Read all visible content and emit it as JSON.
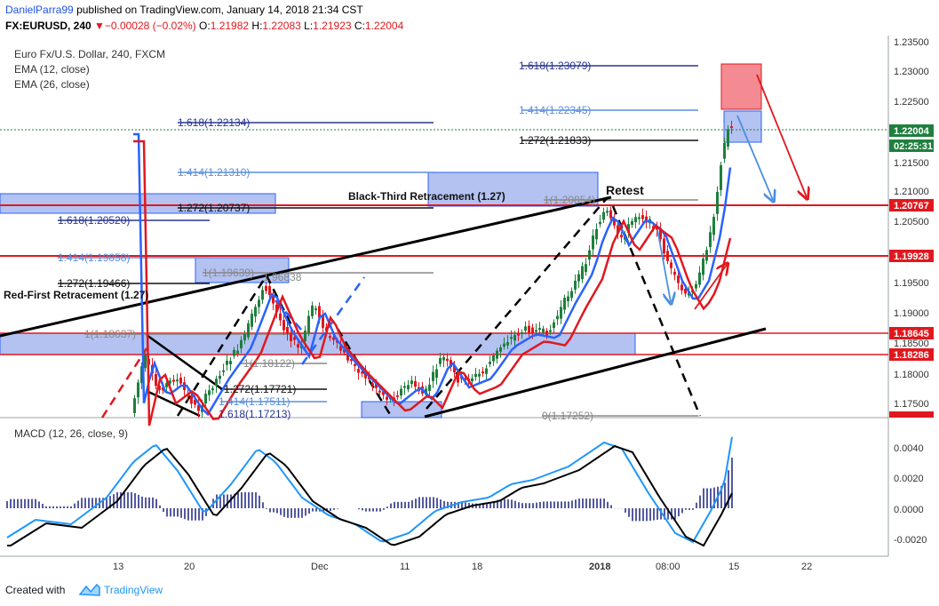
{
  "header": {
    "author": "DanielParra99",
    "published_text": "published on TradingView.com, January 14, 2018 21:34 CST",
    "symbol": "FX:EURUSD, 240",
    "change": "▼−0.00028 (−0.02%)",
    "ohlc": {
      "o_label": "O:",
      "o_value": "1.21982",
      "h_label": "H:",
      "h_value": "1.22083",
      "l_label": "L:",
      "l_value": "1.21923",
      "c_label": "C:",
      "c_value": "1.22004",
      "price": "1.22004"
    }
  },
  "legend": {
    "title": "Euro Fx/U.S. Dollar, 240, FXCM",
    "ema12": "EMA (12, close)",
    "ema26": "EMA (26, close)",
    "macd": "MACD (12, 26, close, 9)"
  },
  "price_axis": {
    "ticks": [
      "1.23500",
      "1.23000",
      "1.22500",
      "1.21500",
      "1.21000",
      "1.20500",
      "1.19500",
      "1.19000",
      "1.18500",
      "1.18000",
      "1.17500"
    ],
    "badges": [
      {
        "label": "1.22004",
        "color": "#1f7f3d"
      },
      {
        "label": "02:25:31",
        "color": "#1f7f3d"
      },
      {
        "label": "1.20767",
        "color": "#e0181e"
      },
      {
        "label": "1.19928",
        "color": "#e0181e"
      },
      {
        "label": "1.18645",
        "color": "#e0181e"
      },
      {
        "label": "1.18286",
        "color": "#e0181e"
      },
      {
        "label": "1.17284",
        "color": "#e0181e"
      }
    ]
  },
  "macd_axis": {
    "ticks": [
      "0.0040",
      "0.0020",
      "0.0000",
      "-0.0020"
    ]
  },
  "time_axis": {
    "labels": [
      "13",
      "20",
      "Dec",
      "11",
      "18",
      "2018",
      "08:00",
      "15",
      "22"
    ]
  },
  "annotations": {
    "fibs": [
      "1.618(1.23079)",
      "1.414(1.22345)",
      "1.272(1.21833)",
      "1.618(1.22134)",
      "1.414(1.21310)",
      "1.272(1.20737)",
      "1.618(1.20520)",
      "1.414(1.19858)",
      "1.272(1.19466)",
      "1(1.20854)",
      "1(1.19639)",
      "1.96838",
      "1(1.18637)",
      "1(1.18122)",
      "1.272(1.17721)",
      "1.414(1.17511)",
      "1.618(1.17213)",
      "0(1.17252)"
    ],
    "black_third": "Black-Third Retracement (1.27)",
    "red_first": "Red-First Retracement (1.27)",
    "retest": "Retest"
  },
  "footer": {
    "created_with": "Created with",
    "brand": "TradingView"
  },
  "colors": {
    "bull": "#1f7f3d",
    "bear": "#e0181e",
    "blue": "#2962ff",
    "macd_line": "#1e96fc",
    "signal_line": "#000000"
  }
}
